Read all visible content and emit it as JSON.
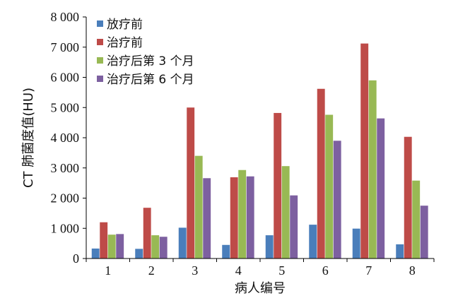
{
  "chart_data": {
    "type": "bar",
    "xlabel": "病人编号",
    "ylabel": "CT 肺菌度值(HU)",
    "categories": [
      "1",
      "2",
      "3",
      "4",
      "5",
      "6",
      "7",
      "8"
    ],
    "ylim": [
      0,
      8000
    ],
    "yticks": [
      "0",
      "1 000",
      "2 000",
      "3 000",
      "4 000",
      "5 000",
      "6 000",
      "7 000",
      "8 000"
    ],
    "ytick_values": [
      0,
      1000,
      2000,
      3000,
      4000,
      5000,
      6000,
      7000,
      8000
    ],
    "grid": false,
    "legend_position": "top-left",
    "series": [
      {
        "name": "放疗前",
        "color": "#4a7ebb",
        "values": [
          330,
          320,
          1020,
          450,
          770,
          1120,
          990,
          470
        ]
      },
      {
        "name": "治疗前",
        "color": "#be4b48",
        "values": [
          1200,
          1680,
          5000,
          2690,
          4820,
          5620,
          7120,
          4030
        ]
      },
      {
        "name": "治疗后第 3 个月",
        "color": "#98b954",
        "values": [
          790,
          770,
          3400,
          2930,
          3060,
          4760,
          5900,
          2580
        ]
      },
      {
        "name": "治疗后第 6 个月",
        "color": "#7d60a0",
        "values": [
          810,
          720,
          2660,
          2720,
          2090,
          3900,
          4640,
          1750
        ]
      }
    ]
  }
}
